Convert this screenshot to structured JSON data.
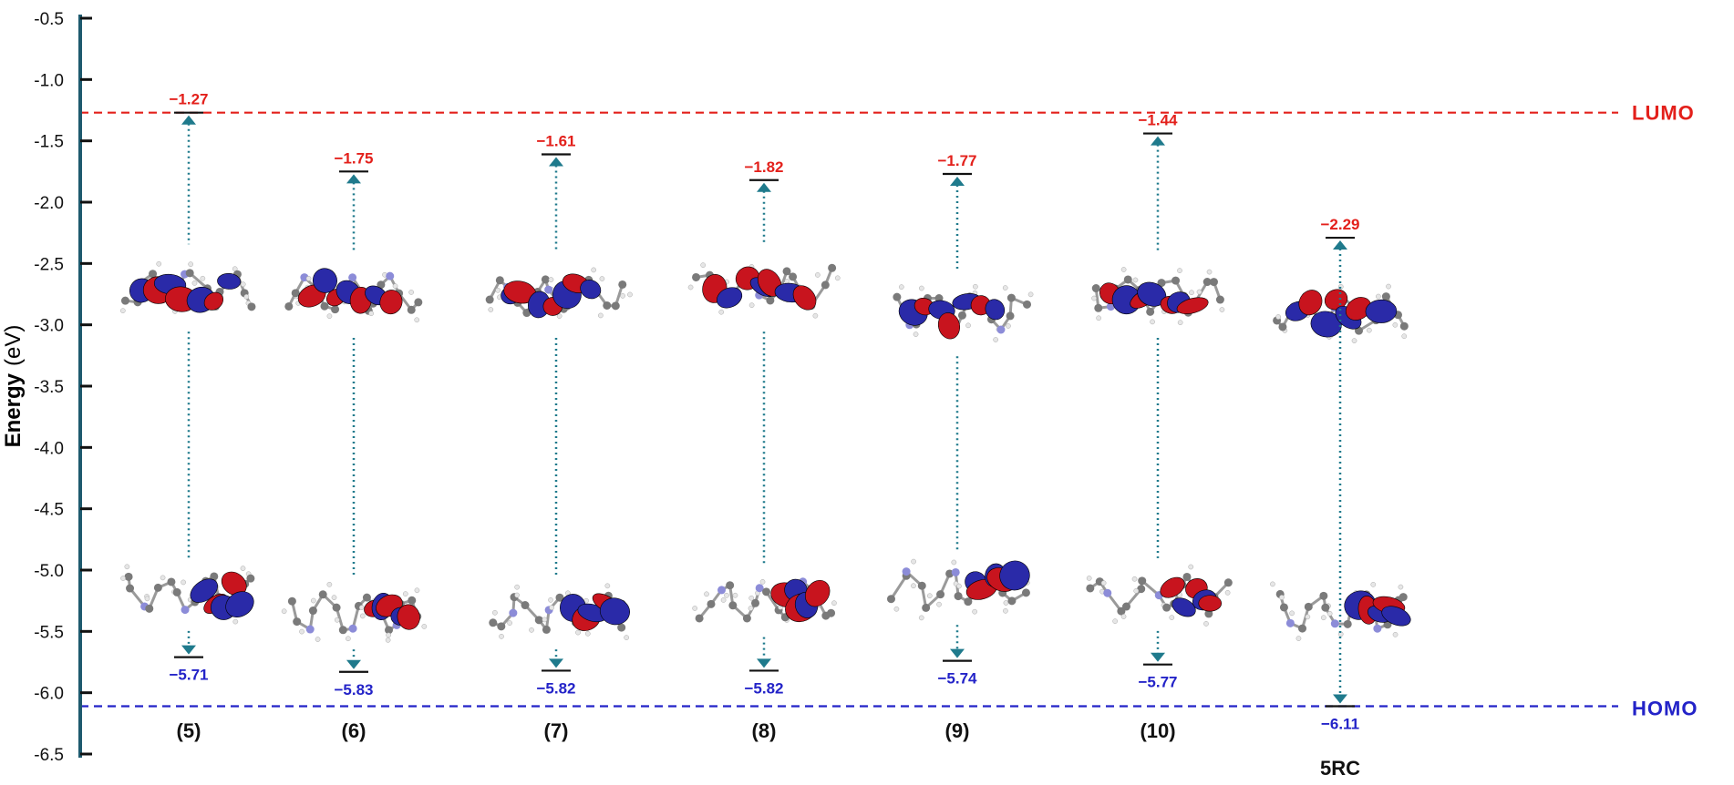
{
  "chart_data": {
    "type": "energy-level-diagram",
    "ylabel_main": "Energy",
    "ylabel_unit": "(eV)",
    "ylim": [
      -6.5,
      -0.5
    ],
    "yticks": [
      "-0.5",
      "-1.0",
      "-1.5",
      "-2.0",
      "-2.5",
      "-3.0",
      "-3.5",
      "-4.0",
      "-4.5",
      "-5.0",
      "-5.5",
      "-6.0",
      "-6.5"
    ],
    "ytick_values": [
      -0.5,
      -1.0,
      -1.5,
      -2.0,
      -2.5,
      -3.0,
      -3.5,
      -4.0,
      -4.5,
      -5.0,
      -5.5,
      -6.0,
      -6.5
    ],
    "reference_lines": {
      "lumo": {
        "label": "LUMO",
        "value": -1.27,
        "color": "#e3201b"
      },
      "homo": {
        "label": "HOMO",
        "value": -6.11,
        "color": "#2323c8"
      }
    },
    "categories": [
      "(5)",
      "(6)",
      "(7)",
      "(8)",
      "(9)",
      "(10)",
      "5RC"
    ],
    "series": [
      {
        "name": "LUMO",
        "values": [
          -1.27,
          -1.75,
          -1.61,
          -1.82,
          -1.77,
          -1.44,
          -2.29
        ],
        "labels": [
          "−1.27",
          "−1.75",
          "−1.61",
          "−1.82",
          "−1.77",
          "−1.44",
          "−2.29"
        ],
        "color": "#e3201b"
      },
      {
        "name": "HOMO",
        "values": [
          -5.71,
          -5.83,
          -5.82,
          -5.82,
          -5.74,
          -5.77,
          -6.11
        ],
        "labels": [
          "−5.71",
          "−5.83",
          "−5.82",
          "−5.82",
          "−5.74",
          "−5.77",
          "−6.11"
        ],
        "color": "#2323c8"
      }
    ],
    "orbital_colors": {
      "positive": "#c8141e",
      "negative": "#2a2aa8",
      "carbon": "#7a7a7a",
      "hydrogen": "#e6e6e6",
      "nitrogen": "#8c8cd8",
      "halogen": "#9acd32",
      "sulfur": "#e0d020",
      "oxygen": "#c82828"
    },
    "gap_line_color": "#1f7a8c",
    "axis_color": "#1e5a6e"
  }
}
